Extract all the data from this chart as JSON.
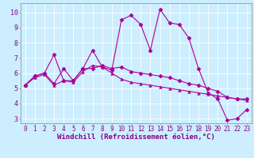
{
  "xlabel": "Windchill (Refroidissement éolien,°C)",
  "background_color": "#cceeff",
  "grid_color": "#ffffff",
  "line_color": "#aa0099",
  "xlim_min": -0.5,
  "xlim_max": 23.5,
  "ylim_min": 2.7,
  "ylim_max": 10.6,
  "yticks": [
    3,
    4,
    5,
    6,
    7,
    8,
    9,
    10
  ],
  "xticks": [
    0,
    1,
    2,
    3,
    4,
    5,
    6,
    7,
    8,
    9,
    10,
    11,
    12,
    13,
    14,
    15,
    16,
    17,
    18,
    19,
    20,
    21,
    22,
    23
  ],
  "series1_x": [
    0,
    1,
    2,
    3,
    4,
    5,
    6,
    7,
    8,
    9,
    10,
    11,
    12,
    13,
    14,
    15,
    16,
    17,
    18,
    19,
    20,
    21,
    22,
    23
  ],
  "series1_y": [
    5.2,
    5.8,
    6.0,
    7.2,
    5.5,
    5.5,
    6.3,
    7.5,
    6.4,
    6.2,
    9.5,
    9.8,
    9.2,
    7.5,
    10.2,
    9.3,
    9.2,
    8.3,
    6.3,
    4.7,
    4.3,
    2.9,
    3.0,
    3.6
  ],
  "series2_x": [
    0,
    1,
    2,
    3,
    4,
    5,
    6,
    7,
    8,
    9,
    10,
    11,
    12,
    13,
    14,
    15,
    16,
    17,
    18,
    19,
    20,
    21,
    22,
    23
  ],
  "series2_y": [
    5.2,
    5.8,
    6.0,
    5.3,
    6.3,
    5.5,
    6.3,
    6.3,
    6.5,
    6.3,
    6.4,
    6.1,
    6.0,
    5.9,
    5.8,
    5.7,
    5.5,
    5.3,
    5.2,
    5.0,
    4.8,
    4.4,
    4.3,
    4.3
  ],
  "series3_x": [
    0,
    1,
    2,
    3,
    4,
    5,
    6,
    7,
    8,
    9,
    10,
    11,
    12,
    13,
    14,
    15,
    16,
    17,
    18,
    19,
    20,
    21,
    22,
    23
  ],
  "series3_y": [
    5.2,
    5.7,
    5.9,
    5.2,
    5.5,
    5.4,
    6.1,
    6.5,
    6.4,
    6.0,
    5.6,
    5.4,
    5.3,
    5.2,
    5.1,
    5.0,
    4.9,
    4.8,
    4.7,
    4.6,
    4.5,
    4.4,
    4.3,
    4.2
  ],
  "marker1": "D",
  "marker2": "D",
  "marker3": "^",
  "markersize": 2.5,
  "linewidth": 0.8,
  "tick_fontsize": 5.5,
  "xlabel_fontsize": 6.5
}
